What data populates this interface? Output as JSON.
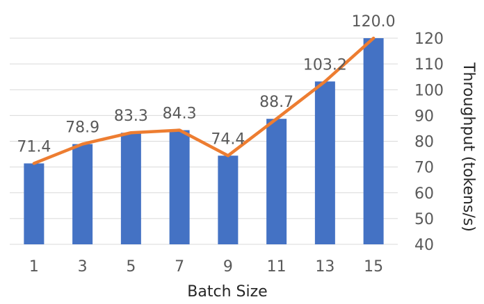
{
  "chart_data": {
    "type": "bar",
    "categories": [
      "1",
      "3",
      "5",
      "7",
      "9",
      "11",
      "13",
      "15"
    ],
    "series": [
      {
        "type": "bar",
        "values": [
          71.4,
          78.9,
          83.3,
          84.3,
          74.4,
          88.7,
          103.2,
          120.0
        ]
      },
      {
        "type": "line",
        "values": [
          71.4,
          78.9,
          83.3,
          84.3,
          74.4,
          88.7,
          103.2,
          120.0
        ]
      }
    ],
    "data_labels": [
      "71.4",
      "78.9",
      "83.3",
      "84.3",
      "74.4",
      "88.7",
      "103.2",
      "120.0"
    ],
    "title": "",
    "xlabel": "Batch Size",
    "ylabel": "Throughput (tokens/s)",
    "ylim": [
      40,
      120
    ],
    "yticks": [
      40,
      50,
      60,
      70,
      80,
      90,
      100,
      110,
      120
    ],
    "y_axis_position": "right",
    "grid": true,
    "colors": {
      "bar": "#4472c4",
      "line": "#ed7d31"
    }
  }
}
